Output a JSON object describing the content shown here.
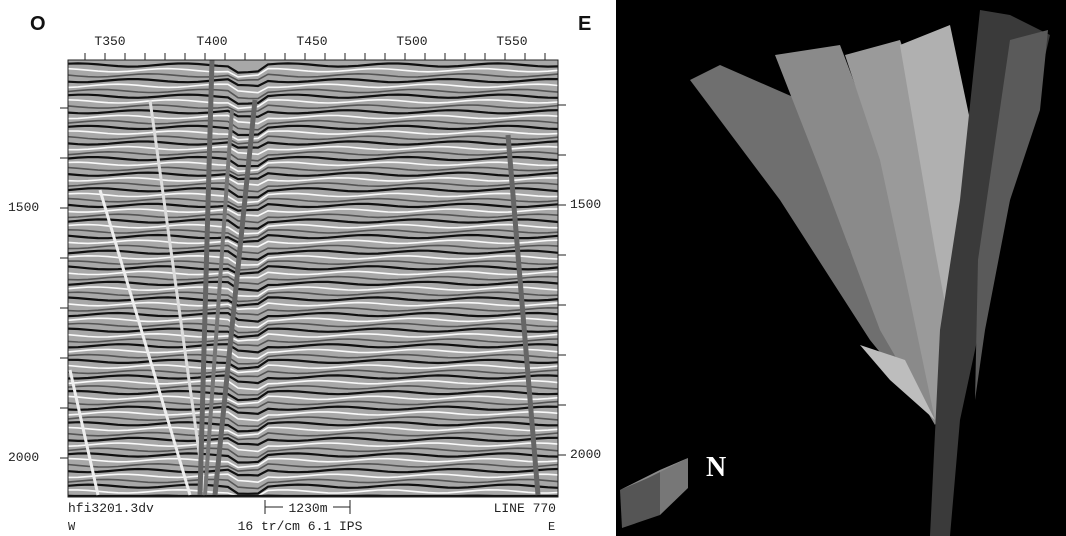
{
  "section": {
    "corner_left": "O",
    "corner_right": "E",
    "trace_labels": [
      "T350",
      "T400",
      "T450",
      "T500",
      "T550"
    ],
    "depth_labels_left": [
      "1500",
      "2000"
    ],
    "depth_labels_right": [
      "1500",
      "2000"
    ],
    "file": "hfi3201.3dv",
    "scale_bar": "1230m",
    "line": "LINE 770",
    "bottom_left": "W",
    "bottom_center": "16 tr/cm 6.1 IPS",
    "bottom_right": "E"
  },
  "model": {
    "north_label": "N"
  }
}
